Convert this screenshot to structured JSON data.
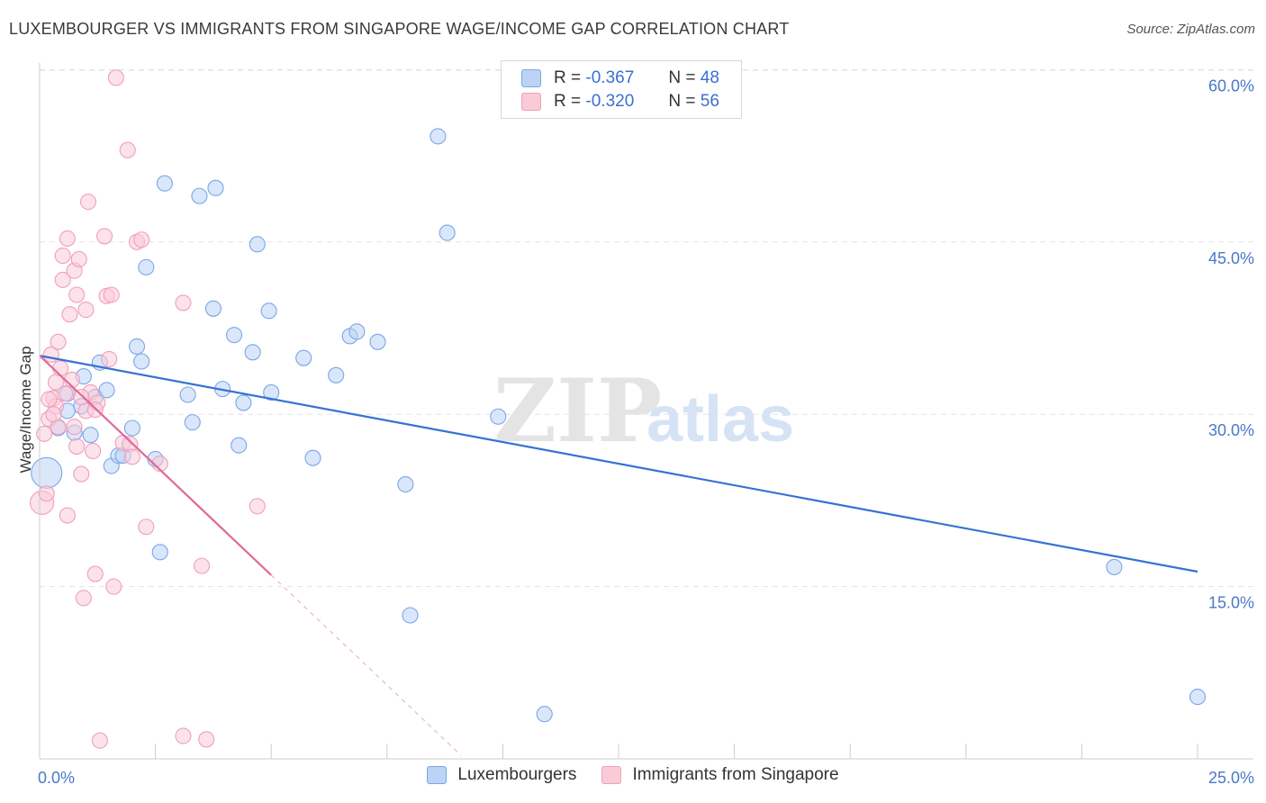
{
  "title": "LUXEMBOURGER VS IMMIGRANTS FROM SINGAPORE WAGE/INCOME GAP CORRELATION CHART",
  "source": "Source: ZipAtlas.com",
  "watermark": {
    "zip": "ZIP",
    "atlas": "atlas"
  },
  "legend": {
    "rows": [
      {
        "r_label": "R =",
        "r_value": "-0.367",
        "n_label": "N =",
        "n_value": "48"
      },
      {
        "r_label": "R =",
        "r_value": "-0.320",
        "n_label": "N =",
        "n_value": "56"
      }
    ]
  },
  "chart_data": {
    "type": "scatter",
    "title": "LUXEMBOURGER VS IMMIGRANTS FROM SINGAPORE WAGE/INCOME GAP CORRELATION CHART",
    "xlabel": "",
    "ylabel": "Wage/Income Gap",
    "xlim": [
      0,
      25
    ],
    "ylim": [
      0,
      62
    ],
    "x_tick_labels": [
      "0.0%",
      "25.0%"
    ],
    "y_tick_labels": [
      "15.0%",
      "30.0%",
      "45.0%",
      "60.0%"
    ],
    "y_ticks": [
      15,
      30,
      45,
      60
    ],
    "grid": true,
    "legend_position": "top-center",
    "series": [
      {
        "name": "Luxembourgers",
        "color": "#7aa6e8",
        "fill": "#bcd3f5",
        "trend": {
          "x": [
            0,
            25
          ],
          "y": [
            35.1,
            16.3
          ],
          "color": "#3672d2"
        },
        "points": [
          [
            0.15,
            24.9
          ],
          [
            0.4,
            28.8
          ],
          [
            0.6,
            31.8
          ],
          [
            0.75,
            28.4
          ],
          [
            0.9,
            30.7
          ],
          [
            0.95,
            33.3
          ],
          [
            1.2,
            31.5
          ],
          [
            1.3,
            34.5
          ],
          [
            1.45,
            32.1
          ],
          [
            1.55,
            25.5
          ],
          [
            1.7,
            26.4
          ],
          [
            1.8,
            26.4
          ],
          [
            2.0,
            28.8
          ],
          [
            2.1,
            35.9
          ],
          [
            2.2,
            34.6
          ],
          [
            2.3,
            42.8
          ],
          [
            2.5,
            26.1
          ],
          [
            2.6,
            18.0
          ],
          [
            2.7,
            50.1
          ],
          [
            3.2,
            31.7
          ],
          [
            3.3,
            29.3
          ],
          [
            3.45,
            49.0
          ],
          [
            3.8,
            49.7
          ],
          [
            3.75,
            39.2
          ],
          [
            3.95,
            32.2
          ],
          [
            4.2,
            36.9
          ],
          [
            4.3,
            27.3
          ],
          [
            4.4,
            31.0
          ],
          [
            4.6,
            35.4
          ],
          [
            4.7,
            44.8
          ],
          [
            4.95,
            39.0
          ],
          [
            5.0,
            31.9
          ],
          [
            5.7,
            34.9
          ],
          [
            5.9,
            26.2
          ],
          [
            6.4,
            33.4
          ],
          [
            6.7,
            36.8
          ],
          [
            6.85,
            37.2
          ],
          [
            7.3,
            36.3
          ],
          [
            7.9,
            23.9
          ],
          [
            8.0,
            12.5
          ],
          [
            8.6,
            54.2
          ],
          [
            8.8,
            45.8
          ],
          [
            9.9,
            29.8
          ],
          [
            10.9,
            3.9
          ],
          [
            23.2,
            16.7
          ],
          [
            25.0,
            5.4
          ],
          [
            0.6,
            30.3
          ],
          [
            1.1,
            28.2
          ]
        ]
      },
      {
        "name": "Immigrants from Singapore",
        "color": "#f0a0b8",
        "fill": "#f9cad8",
        "trend": {
          "x": [
            0,
            5.0
          ],
          "y": [
            35.1,
            16.0
          ],
          "color": "#e0699a"
        },
        "trend_extension": {
          "x": [
            5.0,
            9.1
          ],
          "y": [
            16.0,
            0.3
          ]
        },
        "points": [
          [
            0.05,
            22.3
          ],
          [
            0.1,
            28.3
          ],
          [
            0.15,
            23.1
          ],
          [
            0.2,
            29.6
          ],
          [
            0.25,
            35.2
          ],
          [
            0.3,
            31.4
          ],
          [
            0.35,
            30.7
          ],
          [
            0.35,
            32.8
          ],
          [
            0.4,
            36.3
          ],
          [
            0.45,
            34.0
          ],
          [
            0.5,
            43.8
          ],
          [
            0.5,
            41.7
          ],
          [
            0.55,
            31.8
          ],
          [
            0.6,
            45.3
          ],
          [
            0.6,
            21.2
          ],
          [
            0.65,
            38.7
          ],
          [
            0.7,
            33.0
          ],
          [
            0.75,
            28.9
          ],
          [
            0.75,
            42.5
          ],
          [
            0.8,
            40.4
          ],
          [
            0.8,
            27.2
          ],
          [
            0.85,
            43.5
          ],
          [
            0.9,
            24.8
          ],
          [
            0.95,
            14.0
          ],
          [
            1.0,
            30.3
          ],
          [
            1.0,
            39.1
          ],
          [
            1.05,
            48.5
          ],
          [
            1.1,
            31.9
          ],
          [
            1.15,
            26.8
          ],
          [
            1.2,
            16.1
          ],
          [
            1.25,
            31.0
          ],
          [
            1.3,
            1.6
          ],
          [
            1.4,
            45.5
          ],
          [
            1.45,
            40.3
          ],
          [
            1.5,
            34.8
          ],
          [
            1.55,
            40.4
          ],
          [
            1.6,
            15.0
          ],
          [
            1.65,
            59.3
          ],
          [
            1.8,
            27.5
          ],
          [
            1.9,
            53.0
          ],
          [
            1.95,
            27.4
          ],
          [
            2.0,
            26.3
          ],
          [
            2.1,
            45.0
          ],
          [
            2.2,
            45.2
          ],
          [
            2.3,
            20.2
          ],
          [
            2.6,
            25.7
          ],
          [
            3.1,
            39.7
          ],
          [
            3.1,
            2.0
          ],
          [
            3.5,
            16.8
          ],
          [
            3.6,
            1.7
          ],
          [
            4.7,
            22.0
          ],
          [
            0.2,
            31.3
          ],
          [
            0.4,
            28.9
          ],
          [
            1.2,
            30.4
          ],
          [
            0.9,
            31.5
          ],
          [
            0.3,
            30.0
          ]
        ]
      }
    ]
  }
}
